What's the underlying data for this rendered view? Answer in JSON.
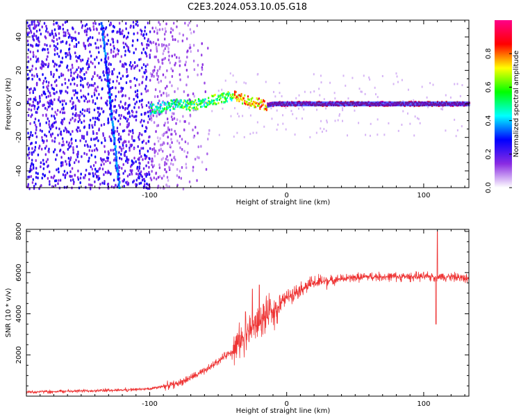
{
  "page_title": "C2E3.2024.053.10.05.G18",
  "chart_data": [
    {
      "type": "heatmap",
      "xlabel": "Height of straight line (km)",
      "ylabel": "Frequency (Hz)",
      "xlim": [
        -190,
        133
      ],
      "ylim": [
        -50,
        50
      ],
      "x_ticks": [
        -100,
        0,
        100
      ],
      "x_tick_labels": [
        "-100",
        "0",
        "100"
      ],
      "y_ticks": [
        -40,
        -20,
        0,
        20,
        40
      ],
      "y_tick_labels": [
        "-40",
        "-20",
        "0",
        "20",
        "40"
      ],
      "colorbar": {
        "label": "Normalized spectral amplitude",
        "range": [
          0,
          1
        ],
        "ticks": [
          0.0,
          0.2,
          0.4,
          0.6,
          0.8
        ],
        "tick_labels": [
          "0.0",
          "0.2",
          "0.4",
          "0.6",
          "0.8"
        ],
        "colors": [
          "#ffffff",
          "#8a2be2",
          "#0000ff",
          "#00ffff",
          "#00ff00",
          "#ffff00",
          "#ff0000",
          "#ff0088"
        ]
      },
      "ridge": {
        "x": [
          -100,
          -90,
          -80,
          -70,
          -60,
          -50,
          -40,
          -30,
          -20,
          -15,
          -10,
          0,
          50,
          100,
          133
        ],
        "y": [
          -3,
          -2,
          0,
          -1,
          1,
          3,
          5,
          2,
          0,
          -1,
          0,
          0,
          0,
          0,
          0
        ]
      },
      "slanted_line": {
        "x": [
          -135,
          -122
        ],
        "y": [
          48,
          -50
        ]
      },
      "grid": false
    },
    {
      "type": "line",
      "xlabel": "Height of straight line (km)",
      "ylabel": "SNR (10 * v/v)",
      "xlim": [
        -190,
        133
      ],
      "ylim": [
        0,
        8100
      ],
      "x_ticks": [
        -100,
        0,
        100
      ],
      "x_tick_labels": [
        "-100",
        "0",
        "100"
      ],
      "y_ticks": [
        2000,
        4000,
        6000,
        8000
      ],
      "y_tick_labels": [
        "2000",
        "4000",
        "6000",
        "8000"
      ],
      "color": "#ee3333",
      "envelope": {
        "x": [
          -190,
          -150,
          -120,
          -100,
          -80,
          -60,
          -40,
          -30,
          -20,
          -10,
          0,
          10,
          20,
          30,
          40,
          60,
          80,
          100,
          110,
          120,
          133
        ],
        "y": [
          200,
          250,
          300,
          350,
          600,
          1200,
          2200,
          3000,
          3600,
          4100,
          4800,
          5200,
          5500,
          5600,
          5700,
          5800,
          5800,
          5800,
          5800,
          5800,
          5700
        ]
      },
      "spikes": [
        {
          "x": 110,
          "y": 8000
        },
        {
          "x": 109,
          "y": 3500
        },
        {
          "x": -20,
          "y": 5400
        },
        {
          "x": -25,
          "y": 5200
        },
        {
          "x": -30,
          "y": 4100
        },
        {
          "x": -5,
          "y": 4900
        },
        {
          "x": -12,
          "y": 4700
        }
      ],
      "grid": false
    }
  ]
}
